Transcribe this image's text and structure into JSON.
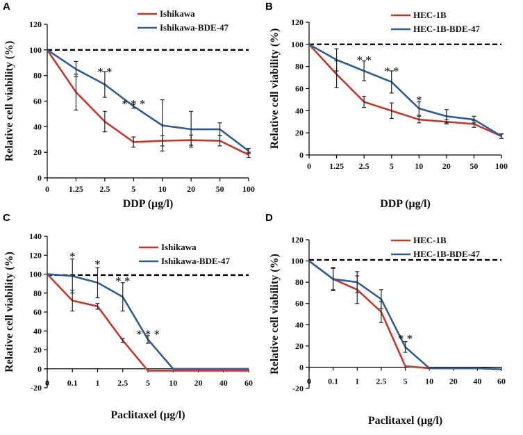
{
  "colors": {
    "red": "#c0392b",
    "blue": "#2e5d8f",
    "ref": "#000000"
  },
  "chart_data": [
    {
      "panel": "A",
      "type": "line",
      "xlabel": "DDP (μg/l)",
      "ylabel": "Relative cell viability (%)",
      "categories": [
        "0",
        "1.25",
        "2.5",
        "5",
        "10",
        "20",
        "50",
        "100"
      ],
      "ylim": [
        0,
        120
      ],
      "yticks": [
        0,
        20,
        40,
        60,
        80,
        100,
        120
      ],
      "reference": 100,
      "legend": "top-right",
      "series": [
        {
          "name": "Ishikawa",
          "color": "red",
          "values": [
            100,
            67,
            44,
            28,
            29,
            29.5,
            29,
            18
          ],
          "err": [
            0,
            14,
            8,
            4,
            4,
            4,
            4,
            2
          ]
        },
        {
          "name": "Ishikawa-BDE-47",
          "color": "blue",
          "values": [
            100,
            85,
            73,
            56,
            41,
            38,
            38,
            21
          ],
          "err": [
            0,
            6,
            10,
            1.5,
            20,
            14,
            5,
            2
          ]
        }
      ],
      "annotations": [
        {
          "i": 2,
          "text": "* *",
          "y": 83
        },
        {
          "i": 3,
          "text": "* * *",
          "y": 58
        }
      ]
    },
    {
      "panel": "B",
      "type": "line",
      "xlabel": "DDP (μg/l)",
      "ylabel": "Relative cell viability (%)",
      "categories": [
        "0",
        "1.25",
        "2.5",
        "5",
        "10",
        "20",
        "50",
        "100"
      ],
      "ylim": [
        0,
        120
      ],
      "yticks": [
        0,
        20,
        40,
        60,
        80,
        100,
        120
      ],
      "reference": 100,
      "legend": "top-right",
      "series": [
        {
          "name": "HEC-1B",
          "color": "red",
          "values": [
            100,
            73,
            48,
            40,
            32,
            30,
            28,
            17
          ],
          "err": [
            0,
            12,
            5,
            7,
            3,
            2,
            3,
            2
          ]
        },
        {
          "name": "HEC-1B-BDE-47",
          "color": "blue",
          "values": [
            100,
            86,
            76,
            66,
            42,
            35,
            32,
            17
          ],
          "err": [
            0,
            10,
            9,
            10,
            6,
            6,
            3,
            2
          ]
        }
      ],
      "annotations": [
        {
          "i": 2,
          "text": "* *",
          "y": 86
        },
        {
          "i": 3,
          "text": "* *",
          "y": 76
        },
        {
          "i": 4,
          "text": "*",
          "y": 50
        }
      ]
    },
    {
      "panel": "C",
      "type": "line",
      "xlabel": "Paclitaxel (μg/l)",
      "ylabel": "Relative cell viability (%)",
      "categories": [
        "0",
        "0.1",
        "1",
        "2.5",
        "5",
        "10",
        "20",
        "40",
        "60"
      ],
      "ylim": [
        -20,
        140
      ],
      "yticks": [
        -20,
        0,
        20,
        40,
        60,
        80,
        100,
        120,
        140
      ],
      "reference": 99,
      "legend": "top-right",
      "series": [
        {
          "name": "Ishikawa",
          "color": "red",
          "values": [
            100,
            72,
            66,
            30,
            -2,
            -2,
            -2,
            -2,
            -2
          ],
          "err": [
            0,
            11,
            3,
            2,
            0,
            0,
            0,
            0,
            0
          ]
        },
        {
          "name": "Ishikawa-BDE-47",
          "color": "blue",
          "values": [
            100,
            98,
            91,
            76,
            31,
            0,
            0,
            0,
            0
          ],
          "err": [
            0,
            18,
            16,
            15,
            4,
            0,
            0,
            0,
            0
          ]
        }
      ],
      "annotations": [
        {
          "i": 1,
          "text": "*",
          "y": 119
        },
        {
          "i": 2,
          "text": "*",
          "y": 111
        },
        {
          "i": 3,
          "text": "* *",
          "y": 93
        },
        {
          "i": 4,
          "text": "* * *",
          "y": 37
        }
      ]
    },
    {
      "panel": "D",
      "type": "line",
      "xlabel": "Paclitaxel (μg/l)",
      "ylabel": "Relative cell viability (%)",
      "categories": [
        "0",
        "0.1",
        "1",
        "2.5",
        "5",
        "10",
        "20",
        "40",
        "60"
      ],
      "ylim": [
        -20,
        120
      ],
      "yticks": [
        -20,
        0,
        20,
        40,
        60,
        80,
        100,
        120
      ],
      "reference": 101,
      "legend": "top-right",
      "series": [
        {
          "name": "HEC-1B",
          "color": "red",
          "values": [
            100,
            83,
            73,
            52,
            1,
            -1,
            -1,
            -1,
            -2
          ],
          "err": [
            0,
            10,
            13,
            10,
            0,
            0,
            0,
            0,
            0
          ]
        },
        {
          "name": "HEC-1B-BDE-47",
          "color": "blue",
          "values": [
            100,
            83,
            80,
            64,
            19,
            -1,
            -1,
            -1,
            -2
          ],
          "err": [
            0,
            11,
            10,
            9,
            5,
            0,
            0,
            0,
            0
          ]
        }
      ],
      "annotations": [
        {
          "i": 4,
          "text": "* *",
          "y": 27
        }
      ]
    }
  ]
}
